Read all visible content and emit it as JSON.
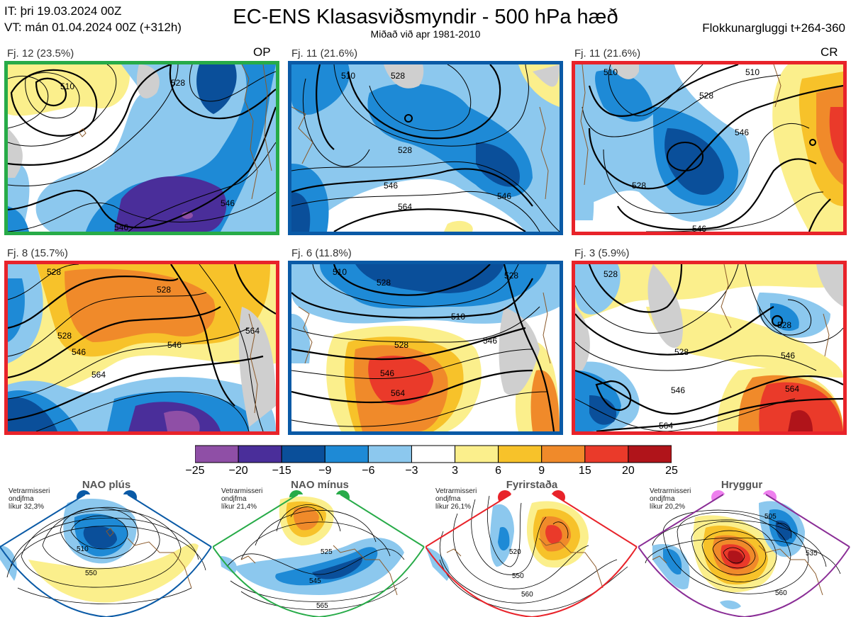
{
  "header": {
    "it_line": "IT: þri 19.03.2024 00Z",
    "vt_line": "VT: mán 01.04.2024 00Z  (+312h)",
    "title": "EC-ENS Klasasviðsmyndir - 500 hPa hæð",
    "subtitle": "Miðað við apr 1981-2010",
    "window": "Flokkunargluggi t+264-360"
  },
  "colors": {
    "green": "#27ab48",
    "blue": "#0a5aa6",
    "red": "#e8232a",
    "purple": "#8a2d96"
  },
  "panels": [
    {
      "caption": "Fj. 12 (23.5%)",
      "code": "OP",
      "frame": "green",
      "contours": [
        "510",
        "528",
        "546",
        "546"
      ]
    },
    {
      "caption": "Fj. 11 (21.6%)",
      "code": "",
      "frame": "blue",
      "contours": [
        "510",
        "528",
        "546",
        "546",
        "564"
      ]
    },
    {
      "caption": "Fj. 11 (21.6%)",
      "code": "CR",
      "frame": "red",
      "contours": [
        "510",
        "528",
        "546",
        "528",
        "546"
      ]
    },
    {
      "caption": "Fj. 8 (15.7%)",
      "code": "",
      "frame": "red",
      "contours": [
        "528",
        "528",
        "546",
        "546",
        "564",
        "564"
      ]
    },
    {
      "caption": "Fj. 6 (11.8%)",
      "code": "",
      "frame": "blue",
      "contours": [
        "510",
        "528",
        "528",
        "546",
        "546",
        "564"
      ]
    },
    {
      "caption": "Fj. 3 (5.9%)",
      "code": "",
      "frame": "red",
      "contours": [
        "528",
        "528",
        "546",
        "546",
        "564",
        "564"
      ]
    }
  ],
  "colorbar": {
    "colors": [
      "#8f4fa6",
      "#4a2e9a",
      "#0a4f9a",
      "#1e8ad6",
      "#8cc8ee",
      "#ffffff",
      "#fbef8c",
      "#f7c22a",
      "#f08a2a",
      "#ea3a2a",
      "#b0141a"
    ],
    "ticks": [
      "−25",
      "−20",
      "−15",
      "−9",
      "−6",
      "−3",
      "3",
      "6",
      "9",
      "15",
      "20",
      "25"
    ]
  },
  "regimes": [
    {
      "title": "NAO plús",
      "note": [
        "Vetrarmisseri",
        "ondjfma",
        "líkur 32,3%"
      ],
      "color": "blue",
      "dot_color": "#0a5aa6",
      "contours": [
        "510",
        "550"
      ]
    },
    {
      "title": "NAO mínus",
      "note": [
        "Vetrarmisseri",
        "ondjfma",
        "líkur 21,4%"
      ],
      "color": "green",
      "dot_color": "#27ab48",
      "contours": [
        "525",
        "545",
        "565"
      ]
    },
    {
      "title": "Fyrirstaða",
      "note": [
        "Vetrarmisseri",
        "ondjfma",
        "líkur 26,1%"
      ],
      "color": "red",
      "dot_color": "#e8232a",
      "contours": [
        "520",
        "550",
        "560"
      ]
    },
    {
      "title": "Hryggur",
      "note": [
        "Vetrarmisseri",
        "ondjfma",
        "líkur 20,2%"
      ],
      "color": "purple",
      "dot_color": "#ee80ee",
      "contours": [
        "505",
        "535",
        "560"
      ]
    }
  ]
}
